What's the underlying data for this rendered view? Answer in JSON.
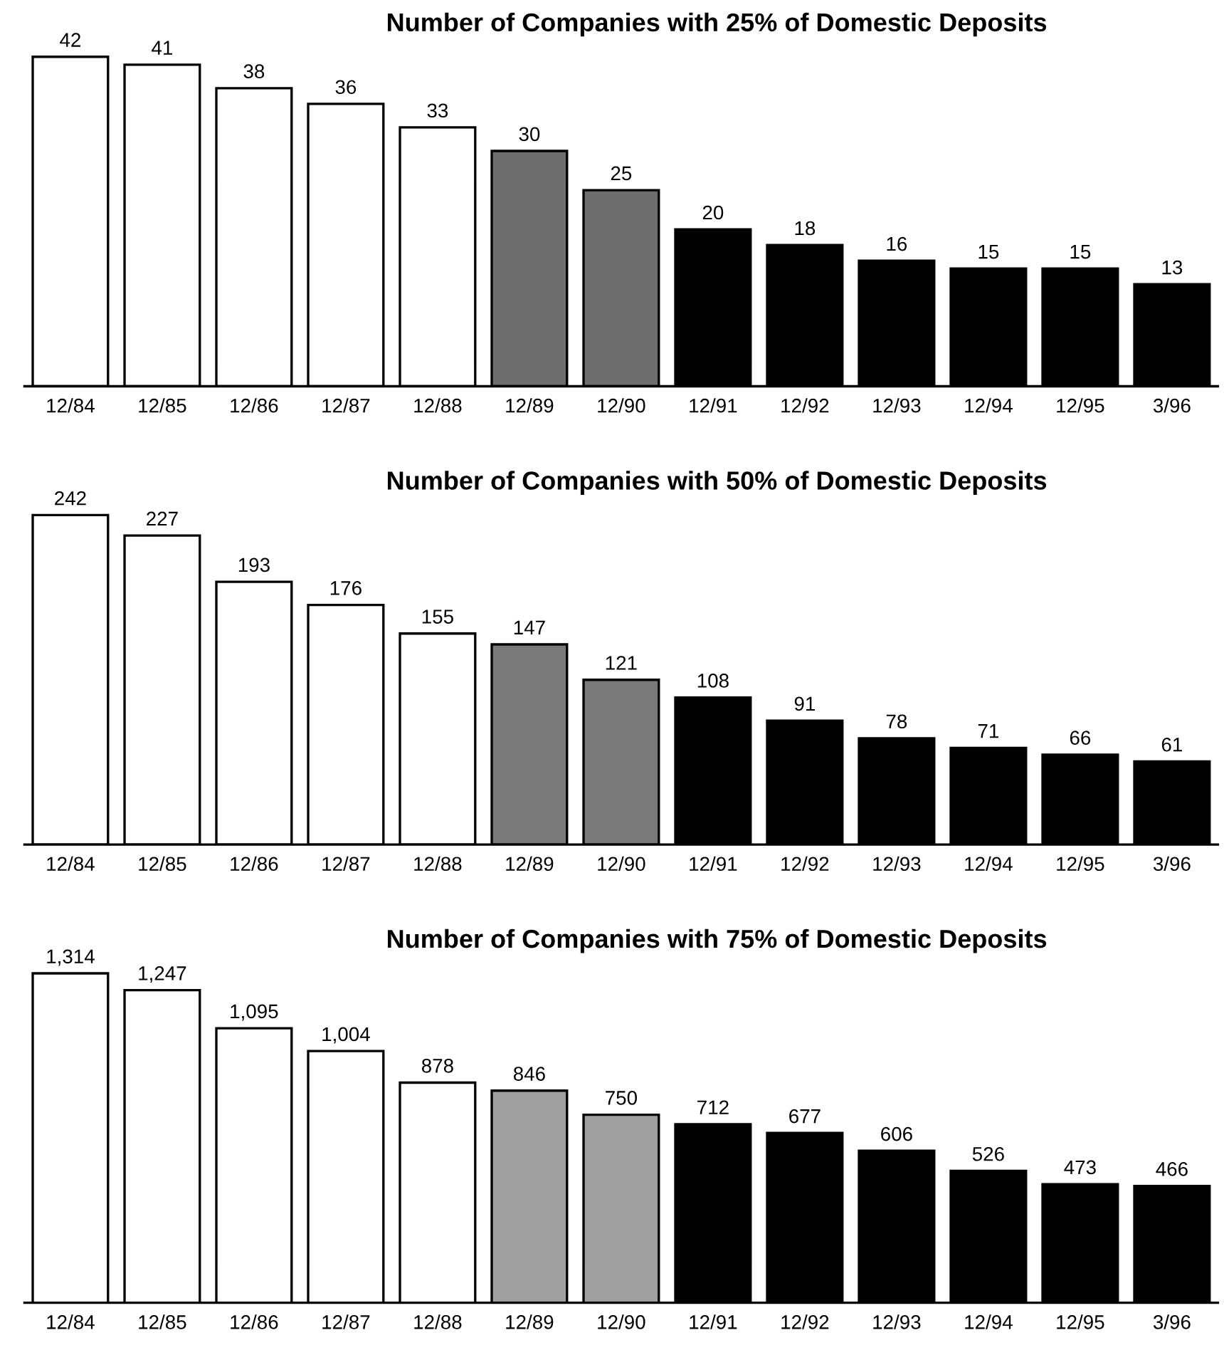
{
  "chart_data": [
    {
      "type": "bar",
      "title": "Number of Companies with 25% of Domestic Deposits",
      "categories": [
        "12/84",
        "12/85",
        "12/86",
        "12/87",
        "12/88",
        "12/89",
        "12/90",
        "12/91",
        "12/92",
        "12/93",
        "12/94",
        "12/95",
        "3/96"
      ],
      "values": [
        42,
        41,
        38,
        36,
        33,
        30,
        25,
        20,
        18,
        16,
        15,
        15,
        13
      ],
      "colors": [
        "#ffffff",
        "#ffffff",
        "#ffffff",
        "#ffffff",
        "#ffffff",
        "#6e6e6e",
        "#6e6e6e",
        "#000000",
        "#000000",
        "#000000",
        "#000000",
        "#000000",
        "#000000"
      ],
      "data_labels": true
    },
    {
      "type": "bar",
      "title": "Number of Companies with 50% of Domestic Deposits",
      "categories": [
        "12/84",
        "12/85",
        "12/86",
        "12/87",
        "12/88",
        "12/89",
        "12/90",
        "12/91",
        "12/92",
        "12/93",
        "12/94",
        "12/95",
        "3/96"
      ],
      "values": [
        242,
        227,
        193,
        176,
        155,
        147,
        121,
        108,
        91,
        78,
        71,
        66,
        61
      ],
      "colors": [
        "#ffffff",
        "#ffffff",
        "#ffffff",
        "#ffffff",
        "#ffffff",
        "#7a7a7a",
        "#7a7a7a",
        "#000000",
        "#000000",
        "#000000",
        "#000000",
        "#000000",
        "#000000"
      ],
      "data_labels": true
    },
    {
      "type": "bar",
      "title": "Number of Companies with 75% of Domestic Deposits",
      "categories": [
        "12/84",
        "12/85",
        "12/86",
        "12/87",
        "12/88",
        "12/89",
        "12/90",
        "12/91",
        "12/92",
        "12/93",
        "12/94",
        "12/95",
        "3/96"
      ],
      "values": [
        1314,
        1247,
        1095,
        1004,
        878,
        846,
        750,
        712,
        677,
        606,
        526,
        473,
        466
      ],
      "colors": [
        "#ffffff",
        "#ffffff",
        "#ffffff",
        "#ffffff",
        "#ffffff",
        "#a0a0a0",
        "#a0a0a0",
        "#000000",
        "#000000",
        "#000000",
        "#000000",
        "#000000",
        "#000000"
      ],
      "value_labels": [
        "1,314",
        "1,247",
        "1,095",
        "1,004",
        "878",
        "846",
        "750",
        "712",
        "677",
        "606",
        "526",
        "473",
        "466"
      ]
    }
  ]
}
